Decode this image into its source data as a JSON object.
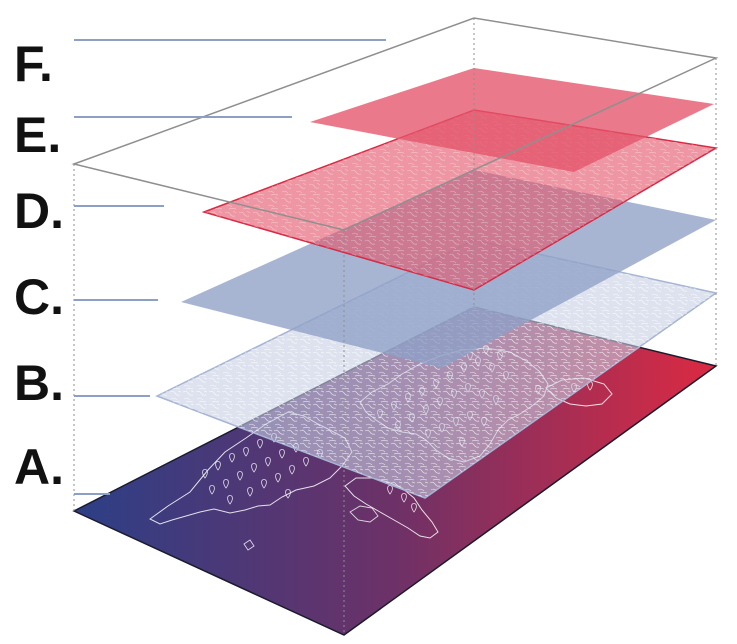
{
  "colors": {
    "frame": "#8f8f8f",
    "leader": "#8e9fc4",
    "navy": "#2c3f86",
    "crimson": "#dc2a42",
    "blue_plane": "#8ea0c6",
    "light_plane": "#c6cee2",
    "red_plane": "#e4556a",
    "coast": "#ffffff"
  },
  "layers": [
    {
      "key": "F",
      "label": "F."
    },
    {
      "key": "E",
      "label": "E."
    },
    {
      "key": "D",
      "label": "D."
    },
    {
      "key": "C",
      "label": "C."
    },
    {
      "key": "B",
      "label": "B."
    },
    {
      "key": "A",
      "label": "A."
    }
  ],
  "base_map": {
    "background_gradient": [
      "navy",
      "crimson"
    ],
    "content": "world-map",
    "marker_icon": "map-pin-icon"
  }
}
